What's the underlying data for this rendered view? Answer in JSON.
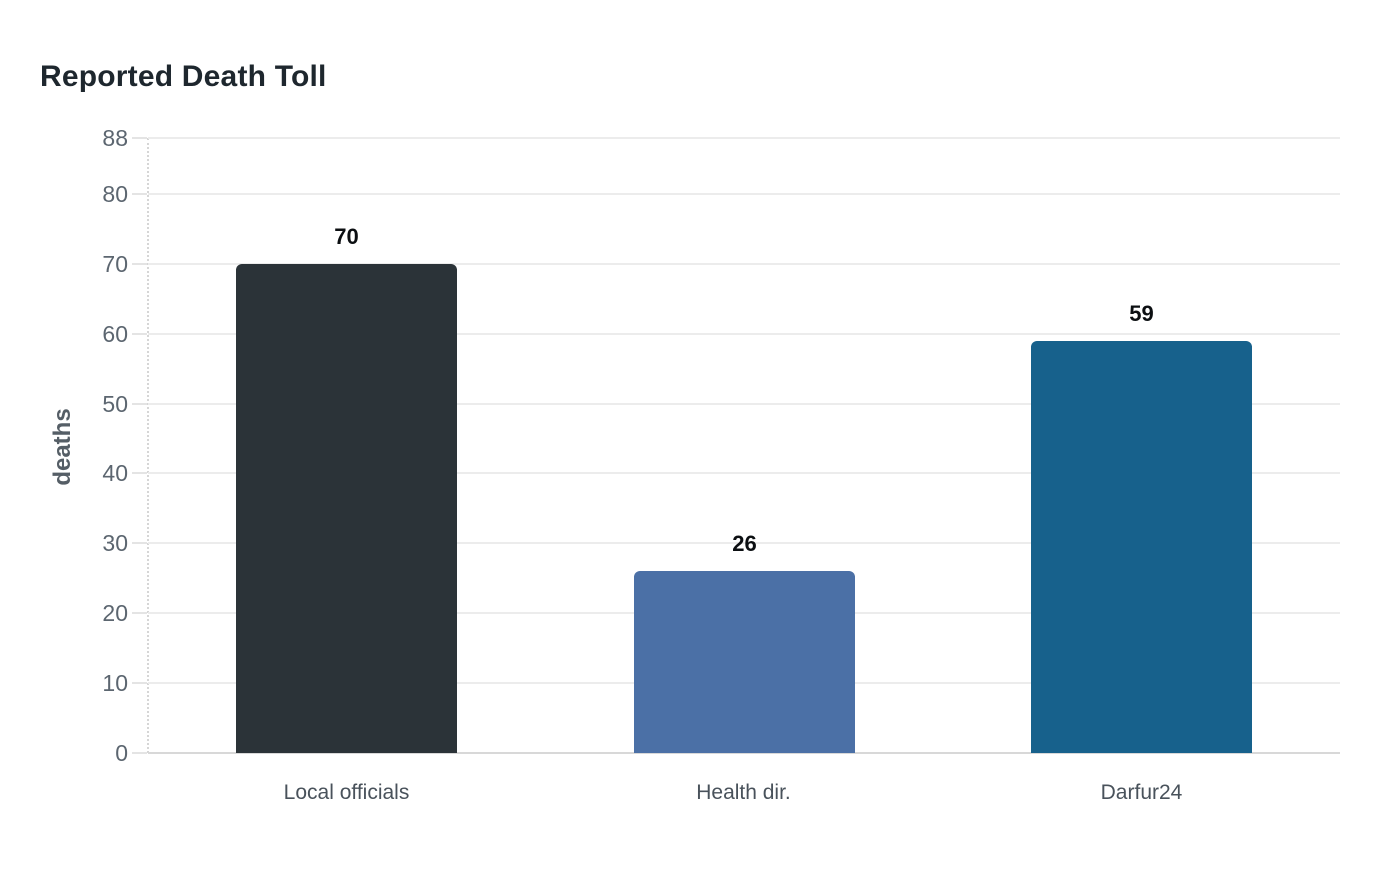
{
  "chart_data": {
    "type": "bar",
    "title": "Reported Death Toll",
    "xlabel": "",
    "ylabel": "deaths",
    "categories": [
      "Local officials",
      "Health dir.",
      "Darfur24"
    ],
    "values": [
      70,
      26,
      59
    ],
    "value_labels": [
      "70",
      "26",
      "59"
    ],
    "bar_colors": [
      "#2b3338",
      "#4b70a6",
      "#17618c"
    ],
    "yticks": [
      0,
      10,
      20,
      30,
      40,
      50,
      60,
      70,
      80,
      88
    ],
    "ylim": [
      0,
      88
    ],
    "grid": "horizontal-only",
    "legend": "none",
    "background": "#ffffff"
  },
  "theme": {
    "background": "#ffffff",
    "title_color": "#1e272e",
    "grid_color": "#ececec",
    "baseline_color": "#d8d8d8",
    "axis_line_color": "#d6d6d6",
    "tick_color": "#e4e4e4",
    "tick_label_color": "#5c6670",
    "category_label_color": "#49525b",
    "value_label_color": "#0c0f12",
    "ylabel_color": "#555e66"
  }
}
